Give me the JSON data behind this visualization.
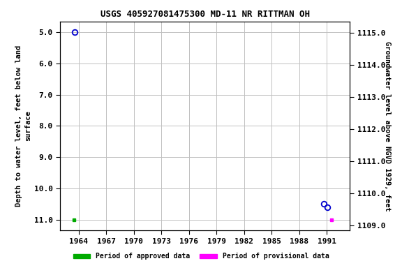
{
  "title": "USGS 405927081475300 MD-11 NR RITTMAN OH",
  "xlabel_ticks": [
    1964,
    1967,
    1970,
    1973,
    1976,
    1979,
    1982,
    1985,
    1988,
    1991
  ],
  "xlim": [
    1962.0,
    1993.5
  ],
  "ylim_left": [
    11.35,
    4.65
  ],
  "ylim_right": [
    1108.85,
    1115.35
  ],
  "yticks_left": [
    5.0,
    6.0,
    7.0,
    8.0,
    9.0,
    10.0,
    11.0
  ],
  "yticks_right": [
    1109.0,
    1110.0,
    1111.0,
    1112.0,
    1113.0,
    1114.0,
    1115.0
  ],
  "ylabel_left": "Depth to water level, feet below land\nsurface",
  "ylabel_right": "Groundwater level above NGVD 1929, feet",
  "approved_points": [
    [
      1963.5,
      11.0
    ]
  ],
  "provisional_points": [
    [
      1991.5,
      11.0
    ]
  ],
  "blue_circle_points": [
    [
      1963.6,
      5.0
    ],
    [
      1990.7,
      10.5
    ],
    [
      1991.05,
      10.6
    ]
  ],
  "bg_color": "#ffffff",
  "plot_bg_color": "#ffffff",
  "grid_color": "#c0c0c0",
  "legend_approved_color": "#00aa00",
  "legend_provisional_color": "#ff00ff",
  "circle_color": "#0000cd",
  "title_fontsize": 9,
  "tick_fontsize": 8,
  "ylabel_fontsize": 7.5
}
